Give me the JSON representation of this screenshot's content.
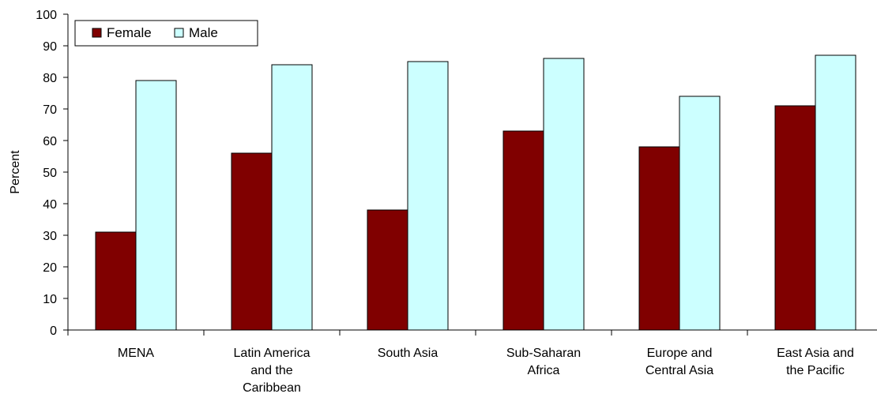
{
  "chart_data": {
    "type": "bar",
    "title": "",
    "xlabel": "",
    "ylabel": "Percent",
    "ylim": [
      0,
      100
    ],
    "yticks": [
      0,
      10,
      20,
      30,
      40,
      50,
      60,
      70,
      80,
      90,
      100
    ],
    "grid": false,
    "legend_position": "top-left",
    "categories": [
      [
        "MENA"
      ],
      [
        "Latin America",
        "and the",
        "Caribbean"
      ],
      [
        "South Asia"
      ],
      [
        "Sub-Saharan",
        "Africa"
      ],
      [
        "Europe and",
        "Central Asia"
      ],
      [
        "East Asia and",
        "the Pacific"
      ]
    ],
    "series": [
      {
        "name": "Female",
        "color": "#800000",
        "values": [
          31,
          56,
          38,
          63,
          58,
          71
        ]
      },
      {
        "name": "Male",
        "color": "#ccffff",
        "values": [
          79,
          84,
          85,
          86,
          74,
          87
        ]
      }
    ]
  }
}
